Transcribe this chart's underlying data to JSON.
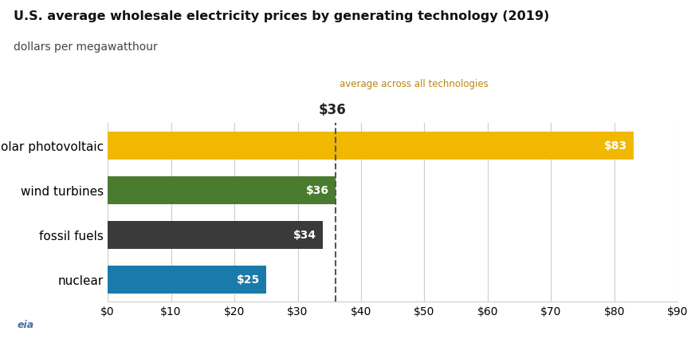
{
  "title": "U.S. average wholesale electricity prices by generating technology (2019)",
  "subtitle": "dollars per megawatthour",
  "categories": [
    "nuclear",
    "fossil fuels",
    "wind turbines",
    "solar photovoltaic"
  ],
  "values": [
    25,
    34,
    36,
    83
  ],
  "bar_colors": [
    "#1a7aaa",
    "#3a3a3a",
    "#4a7c2f",
    "#f0b800"
  ],
  "bar_labels": [
    "$25",
    "$34",
    "$36",
    "$83"
  ],
  "avg_line": 36,
  "avg_label": "average across all technologies",
  "avg_value_label": "$36",
  "xlim": [
    0,
    90
  ],
  "xticks": [
    0,
    10,
    20,
    30,
    40,
    50,
    60,
    70,
    80,
    90
  ],
  "xtick_labels": [
    "$0",
    "$10",
    "$20",
    "$30",
    "$40",
    "$50",
    "$60",
    "$70",
    "$80",
    "$90"
  ],
  "title_fontsize": 11.5,
  "subtitle_fontsize": 10,
  "label_fontsize": 10,
  "tick_fontsize": 10,
  "avg_text_color": "#b8860b",
  "avg_value_color": "#222222",
  "yticklabel_fontsize": 11,
  "background_color": "#ffffff",
  "grid_color": "#cccccc",
  "dashed_line_color": "#555566"
}
